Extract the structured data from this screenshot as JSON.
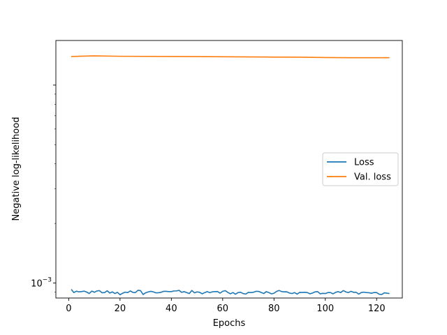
{
  "chart_data": {
    "type": "line",
    "xlabel": "Epochs",
    "ylabel": "Negative log-likelihood",
    "xscale": "linear",
    "yscale": "log",
    "xlim": [
      -5,
      130
    ],
    "ylim": [
      0.00084,
      0.0168
    ],
    "xticks": [
      0,
      20,
      40,
      60,
      80,
      100,
      120
    ],
    "yticks": [
      {
        "value": 0.001,
        "label": "10^-3"
      }
    ],
    "grid": false,
    "legend_position": "center-right",
    "series": [
      {
        "name": "Loss",
        "color": "#1f77b4",
        "x": [
          1,
          2,
          3,
          4,
          5,
          6,
          7,
          8,
          9,
          10,
          11,
          12,
          13,
          14,
          15,
          16,
          17,
          18,
          19,
          20,
          21,
          22,
          23,
          24,
          25,
          26,
          27,
          28,
          29,
          30,
          31,
          32,
          33,
          34,
          35,
          36,
          37,
          38,
          39,
          40,
          41,
          42,
          43,
          44,
          45,
          46,
          47,
          48,
          49,
          50,
          51,
          52,
          53,
          54,
          55,
          56,
          57,
          58,
          59,
          60,
          61,
          62,
          63,
          64,
          65,
          66,
          67,
          68,
          69,
          70,
          71,
          72,
          73,
          74,
          75,
          76,
          77,
          78,
          79,
          80,
          81,
          82,
          83,
          84,
          85,
          86,
          87,
          88,
          89,
          90,
          91,
          92,
          93,
          94,
          95,
          96,
          97,
          98,
          99,
          100,
          101,
          102,
          103,
          104,
          105,
          106,
          107,
          108,
          109,
          110,
          111,
          112,
          113,
          114,
          115,
          116,
          117,
          118,
          119,
          120,
          121,
          122,
          123,
          124,
          125
        ],
        "y": [
          0.000929,
          0.000895,
          0.00091,
          0.000902,
          0.000905,
          0.00091,
          0.0009,
          0.000885,
          0.00091,
          0.000898,
          0.000912,
          0.000915,
          0.000893,
          0.000895,
          0.000914,
          0.00089,
          0.000902,
          0.000885,
          0.000897,
          0.000873,
          0.000888,
          0.000899,
          0.000895,
          0.000912,
          0.000897,
          0.000895,
          0.000919,
          0.000915,
          0.000875,
          0.000893,
          0.000902,
          0.000908,
          0.000902,
          0.000892,
          0.000893,
          0.000898,
          0.000908,
          0.000908,
          0.000905,
          0.000905,
          0.000912,
          0.000912,
          0.000918,
          0.000897,
          0.000905,
          0.000895,
          0.000885,
          0.000917,
          0.000892,
          0.000902,
          0.000898,
          0.000882,
          0.000895,
          0.000905,
          0.000894,
          0.000903,
          0.000905,
          0.000906,
          0.000889,
          0.000908,
          0.000915,
          0.000897,
          0.000882,
          0.000895,
          0.000878,
          0.000895,
          0.000898,
          0.000884,
          0.00088,
          0.000897,
          0.000895,
          0.000898,
          0.000908,
          0.000907,
          0.000896,
          0.000885,
          0.000905,
          0.000895,
          0.000882,
          0.000888,
          0.000907,
          0.000917,
          0.000905,
          0.000902,
          0.000903,
          0.00089,
          0.000885,
          0.000895,
          0.000879,
          0.000897,
          0.000896,
          0.000898,
          0.000895,
          0.000882,
          0.00089,
          0.000902,
          0.000905,
          0.000882,
          0.000887,
          0.000885,
          0.000895,
          0.000895,
          0.000882,
          0.000897,
          0.000905,
          0.000895,
          0.000916,
          0.000902,
          0.000895,
          0.000908,
          0.000897,
          0.000898,
          0.000879,
          0.000895,
          0.000899,
          0.000895,
          0.000893,
          0.000888,
          0.000895,
          0.000895,
          0.000878,
          0.000875,
          0.000892,
          0.000889,
          0.000884
        ]
      },
      {
        "name": "Val. loss",
        "color": "#ff7f0e",
        "x": [
          1,
          10,
          20,
          40,
          60,
          80,
          90,
          100,
          110,
          125
        ],
        "y": [
          0.01395,
          0.01405,
          0.01398,
          0.01395,
          0.0139,
          0.01385,
          0.01383,
          0.01378,
          0.01375,
          0.01375
        ]
      }
    ]
  }
}
